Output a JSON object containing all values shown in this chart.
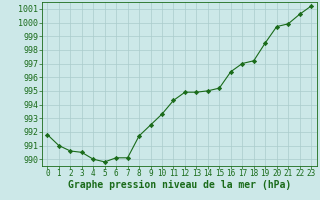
{
  "x": [
    0,
    1,
    2,
    3,
    4,
    5,
    6,
    7,
    8,
    9,
    10,
    11,
    12,
    13,
    14,
    15,
    16,
    17,
    18,
    19,
    20,
    21,
    22,
    23
  ],
  "y": [
    991.8,
    991.0,
    990.6,
    990.5,
    990.0,
    989.8,
    990.1,
    990.1,
    991.7,
    992.5,
    993.3,
    994.3,
    994.9,
    994.9,
    995.0,
    995.2,
    996.4,
    997.0,
    997.2,
    998.5,
    999.7,
    999.9,
    1000.6,
    1001.2
  ],
  "line_color": "#1a6b1a",
  "marker": "D",
  "marker_size": 2.2,
  "background_color": "#cce8e8",
  "grid_color": "#aacccc",
  "xlabel": "Graphe pression niveau de la mer (hPa)",
  "xlabel_fontsize": 7,
  "ylabel_fontsize": 6,
  "tick_fontsize": 5.5,
  "ylim": [
    989.5,
    1001.5
  ],
  "xlim": [
    -0.5,
    23.5
  ],
  "yticks": [
    990,
    991,
    992,
    993,
    994,
    995,
    996,
    997,
    998,
    999,
    1000,
    1001
  ],
  "xticks": [
    0,
    1,
    2,
    3,
    4,
    5,
    6,
    7,
    8,
    9,
    10,
    11,
    12,
    13,
    14,
    15,
    16,
    17,
    18,
    19,
    20,
    21,
    22,
    23
  ]
}
